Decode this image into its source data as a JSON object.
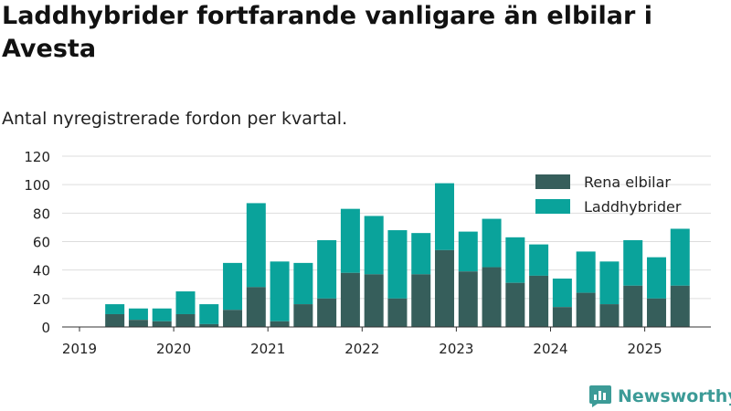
{
  "title": "Laddhybrider fortfarande vanligare än elbilar i Avesta",
  "subtitle": "Antal nyregistrerade fordon per kvartal.",
  "brand": {
    "name": "Newsworthy",
    "icon": "newsworthy-logo-icon"
  },
  "colors": {
    "bev": "#365e5b",
    "phev": "#0aa39b",
    "grid": "#dddddd",
    "axis": "#333333",
    "brand": "#3c9b97"
  },
  "chart_data": {
    "type": "bar",
    "stacked": true,
    "title": "Laddhybrider fortfarande vanligare än elbilar i Avesta",
    "subtitle": "Antal nyregistrerade fordon per kvartal.",
    "xlabel": "",
    "ylabel": "",
    "ylim": [
      0,
      120
    ],
    "yticks": [
      0,
      20,
      40,
      60,
      80,
      100,
      120
    ],
    "xticks": [
      "2019",
      "2020",
      "2021",
      "2022",
      "2023",
      "2024",
      "2025"
    ],
    "categories": [
      "2019 Q2",
      "2019 Q3",
      "2019 Q4",
      "2020 Q1",
      "2020 Q2",
      "2020 Q3",
      "2020 Q4",
      "2021 Q1",
      "2021 Q2",
      "2021 Q3",
      "2021 Q4",
      "2022 Q1",
      "2022 Q2",
      "2022 Q3",
      "2022 Q4",
      "2023 Q1",
      "2023 Q2",
      "2023 Q3",
      "2023 Q4",
      "2024 Q1",
      "2024 Q2",
      "2024 Q3",
      "2024 Q4",
      "2025 Q1",
      "2025 Q2"
    ],
    "grid": true,
    "legend_position": "top-right",
    "series": [
      {
        "name": "Rena elbilar",
        "color": "#365e5b",
        "values": [
          9,
          5,
          4,
          9,
          2,
          12,
          28,
          4,
          16,
          20,
          38,
          37,
          20,
          37,
          54,
          39,
          42,
          31,
          36,
          14,
          24,
          16,
          29,
          20,
          29
        ]
      },
      {
        "name": "Laddhybrider",
        "color": "#0aa39b",
        "values": [
          7,
          8,
          9,
          16,
          14,
          33,
          59,
          42,
          29,
          41,
          45,
          41,
          48,
          29,
          47,
          28,
          34,
          32,
          22,
          20,
          29,
          30,
          32,
          29,
          40
        ]
      }
    ]
  }
}
